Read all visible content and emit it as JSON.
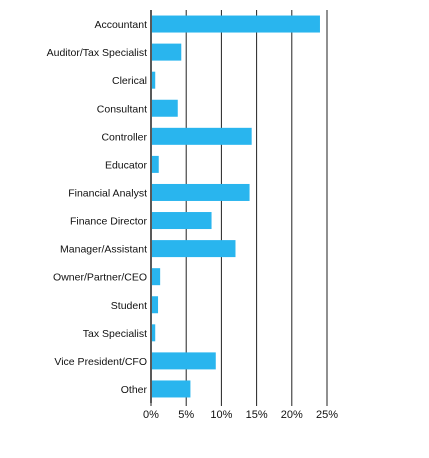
{
  "chart_data": {
    "type": "bar",
    "orientation": "horizontal",
    "categories": [
      "Accountant",
      "Auditor/Tax Specialist",
      "Clerical",
      "Consultant",
      "Controller",
      "Educator",
      "Financial Analyst",
      "Finance Director",
      "Manager/Assistant",
      "Owner/Partner/CEO",
      "Student",
      "Tax Specialist",
      "Vice President/CFO",
      "Other"
    ],
    "values": [
      24.0,
      4.3,
      0.6,
      3.8,
      14.3,
      1.1,
      14.0,
      8.6,
      12.0,
      1.3,
      1.0,
      0.6,
      9.2,
      5.6
    ],
    "xlim": [
      0,
      25
    ],
    "xticks": [
      0,
      5,
      10,
      15,
      20,
      25
    ],
    "tick_labels": [
      "0%",
      "5%",
      "10%",
      "15%",
      "20%",
      "25%"
    ],
    "grid": "vertical",
    "colors": {
      "bar": "#29b5ee",
      "grid": "#222222",
      "axis": "#222222"
    }
  }
}
